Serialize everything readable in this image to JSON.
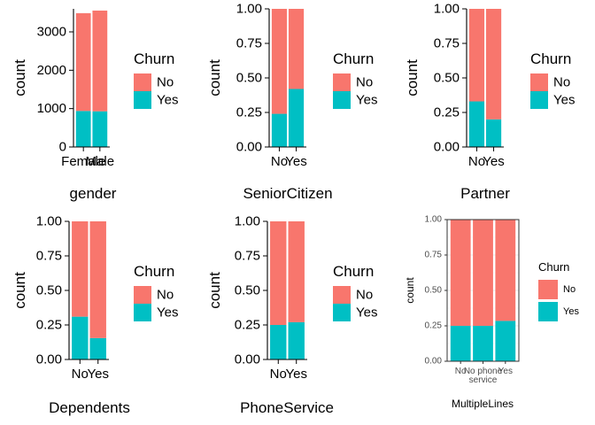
{
  "colors": {
    "No": "#F8766D",
    "Yes": "#00BFC4"
  },
  "chart_data": [
    {
      "type": "bar",
      "stacked": true,
      "title": "",
      "xlabel": "gender",
      "ylabel": "count",
      "categories": [
        "Female",
        "Male"
      ],
      "series": [
        {
          "name": "No",
          "values": [
            2549,
            2625
          ]
        },
        {
          "name": "Yes",
          "values": [
            939,
            930
          ]
        }
      ],
      "ylim": [
        0,
        3600
      ],
      "yticks": [
        0,
        1000,
        2000,
        3000
      ],
      "ytick_labels": [
        "0",
        "1000",
        "2000",
        "3000"
      ],
      "legend": {
        "title": "Churn",
        "entries": [
          "No",
          "Yes"
        ],
        "position": "right"
      },
      "theme": "classic",
      "grid": false
    },
    {
      "type": "bar",
      "stacked": true,
      "title": "",
      "xlabel": "SeniorCitizen",
      "ylabel": "count",
      "categories": [
        "No",
        "Yes"
      ],
      "series": [
        {
          "name": "No",
          "values": [
            0.76,
            0.58
          ]
        },
        {
          "name": "Yes",
          "values": [
            0.24,
            0.42
          ]
        }
      ],
      "ylim": [
        0,
        1
      ],
      "yticks": [
        0,
        0.25,
        0.5,
        0.75,
        1
      ],
      "ytick_labels": [
        "0.00",
        "0.25",
        "0.50",
        "0.75",
        "1.00"
      ],
      "legend": {
        "title": "Churn",
        "entries": [
          "No",
          "Yes"
        ],
        "position": "right"
      },
      "theme": "classic",
      "grid": false
    },
    {
      "type": "bar",
      "stacked": true,
      "title": "",
      "xlabel": "Partner",
      "ylabel": "count",
      "categories": [
        "No",
        "Yes"
      ],
      "series": [
        {
          "name": "No",
          "values": [
            0.67,
            0.8
          ]
        },
        {
          "name": "Yes",
          "values": [
            0.33,
            0.2
          ]
        }
      ],
      "ylim": [
        0,
        1
      ],
      "yticks": [
        0,
        0.25,
        0.5,
        0.75,
        1
      ],
      "ytick_labels": [
        "0.00",
        "0.25",
        "0.50",
        "0.75",
        "1.00"
      ],
      "legend": {
        "title": "Churn",
        "entries": [
          "No",
          "Yes"
        ],
        "position": "right"
      },
      "theme": "classic",
      "grid": false
    },
    {
      "type": "bar",
      "stacked": true,
      "title": "",
      "xlabel": "Dependents",
      "ylabel": "count",
      "categories": [
        "No",
        "Yes"
      ],
      "series": [
        {
          "name": "No",
          "values": [
            0.69,
            0.845
          ]
        },
        {
          "name": "Yes",
          "values": [
            0.31,
            0.155
          ]
        }
      ],
      "ylim": [
        0,
        1
      ],
      "yticks": [
        0,
        0.25,
        0.5,
        0.75,
        1
      ],
      "ytick_labels": [
        "0.00",
        "0.25",
        "0.50",
        "0.75",
        "1.00"
      ],
      "legend": {
        "title": "Churn",
        "entries": [
          "No",
          "Yes"
        ],
        "position": "right"
      },
      "theme": "classic",
      "grid": false
    },
    {
      "type": "bar",
      "stacked": true,
      "title": "",
      "xlabel": "PhoneService",
      "ylabel": "count",
      "categories": [
        "No",
        "Yes"
      ],
      "series": [
        {
          "name": "No",
          "values": [
            0.75,
            0.73
          ]
        },
        {
          "name": "Yes",
          "values": [
            0.25,
            0.27
          ]
        }
      ],
      "ylim": [
        0,
        1
      ],
      "yticks": [
        0,
        0.25,
        0.5,
        0.75,
        1
      ],
      "ytick_labels": [
        "0.00",
        "0.25",
        "0.50",
        "0.75",
        "1.00"
      ],
      "legend": {
        "title": "Churn",
        "entries": [
          "No",
          "Yes"
        ],
        "position": "right"
      },
      "theme": "classic",
      "grid": false
    },
    {
      "type": "bar",
      "stacked": true,
      "title": "",
      "xlabel": "MultipleLines",
      "ylabel": "count",
      "categories": [
        "No",
        "No phone service",
        "Yes"
      ],
      "tick_labels_display": [
        [
          "No"
        ],
        [
          "No phone",
          "service"
        ],
        [
          "Yes"
        ]
      ],
      "series": [
        {
          "name": "No",
          "values": [
            0.75,
            0.75,
            0.715
          ]
        },
        {
          "name": "Yes",
          "values": [
            0.25,
            0.25,
            0.285
          ]
        }
      ],
      "ylim": [
        0,
        1
      ],
      "yticks": [
        0,
        0.25,
        0.5,
        0.75,
        1
      ],
      "ytick_labels": [
        "0.00",
        "0.25",
        "0.50",
        "0.75",
        "1.00"
      ],
      "legend": {
        "title": "Churn",
        "entries": [
          "No",
          "Yes"
        ],
        "position": "right"
      },
      "theme": "bw",
      "grid": true
    }
  ]
}
